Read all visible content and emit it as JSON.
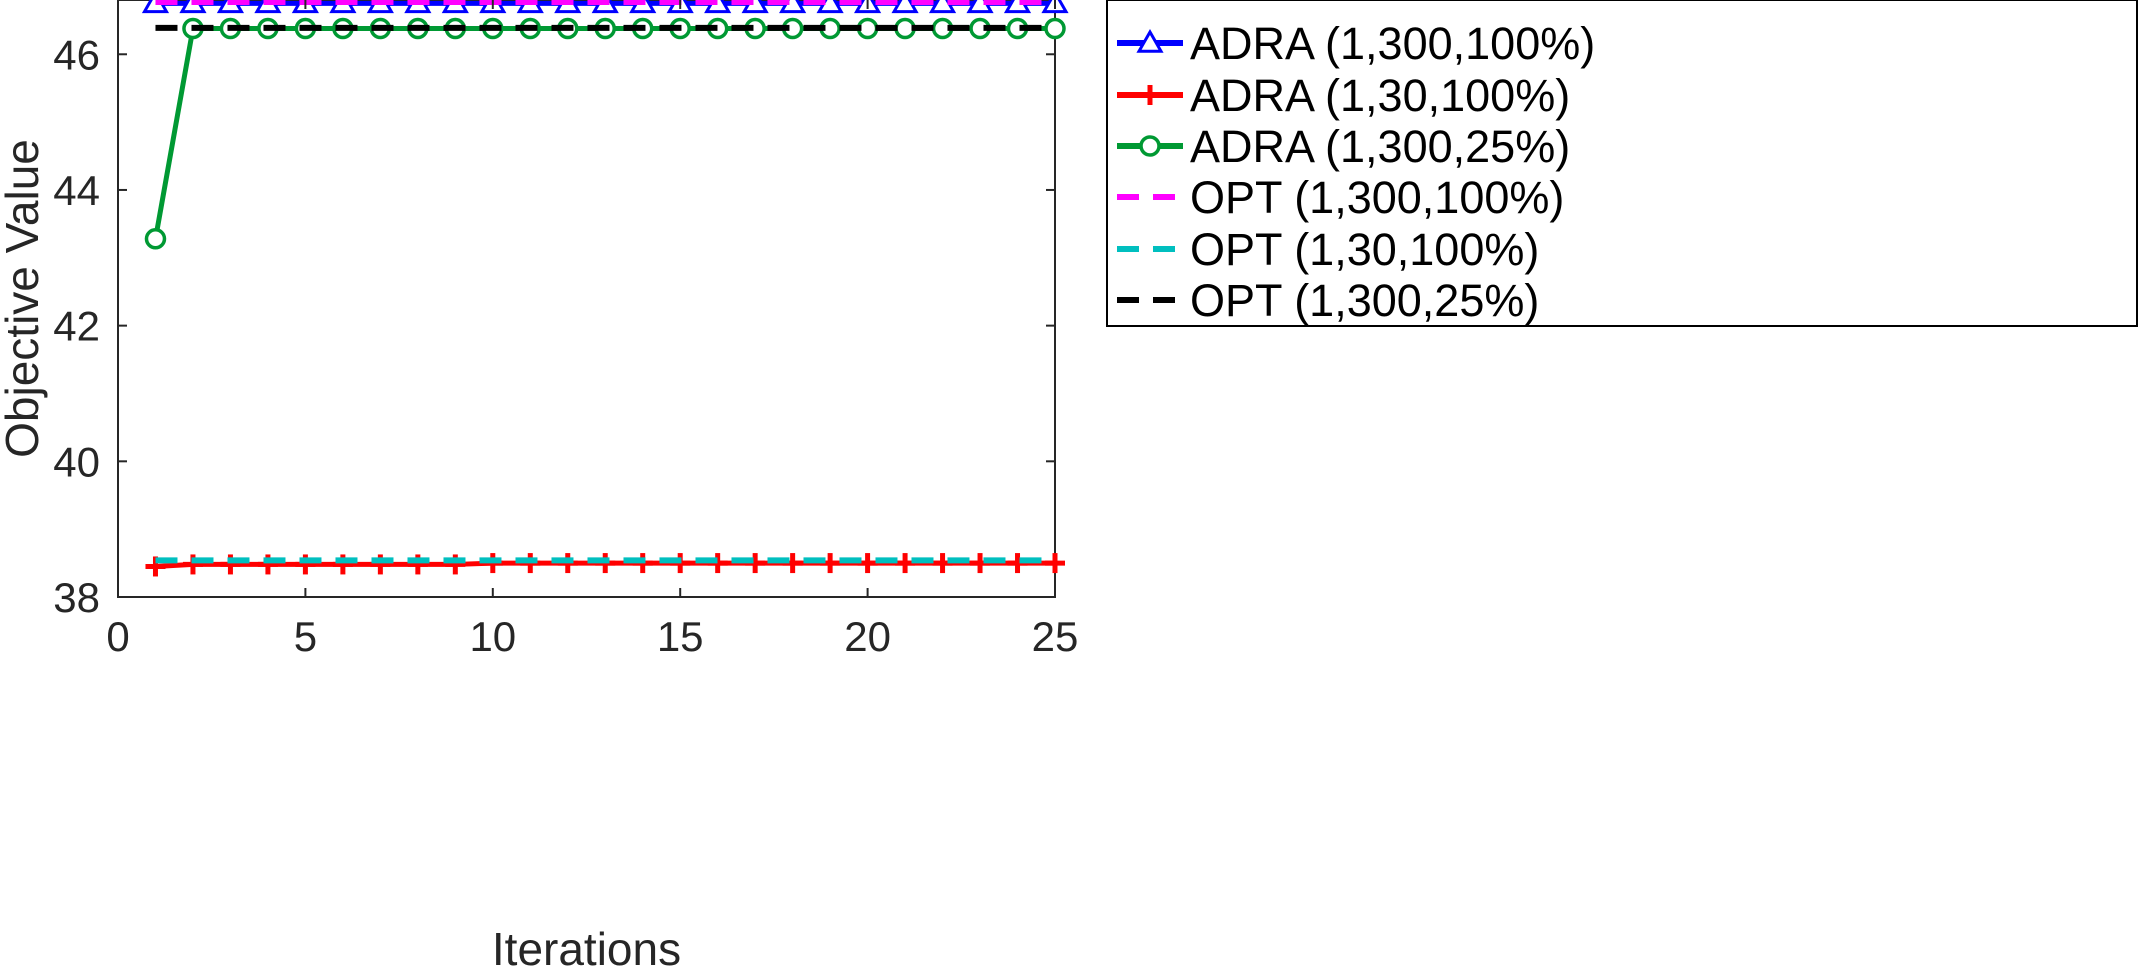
{
  "chart_data": {
    "type": "line",
    "title": "",
    "xlabel": "Iterations",
    "ylabel": "Objective Value",
    "xlim": [
      0,
      25
    ],
    "ylim": [
      38,
      46.8
    ],
    "xticks": [
      0,
      5,
      10,
      15,
      20,
      25
    ],
    "yticks": [
      38,
      40,
      42,
      44,
      46
    ],
    "grid": false,
    "legend_position": "outside-right",
    "series": [
      {
        "name": "ADRA (1,300,100%)",
        "color": "#0000ff",
        "style": "solid",
        "marker": "triangle",
        "x": [
          1,
          2,
          3,
          4,
          5,
          6,
          7,
          8,
          9,
          10,
          11,
          12,
          13,
          14,
          15,
          16,
          17,
          18,
          19,
          20,
          21,
          22,
          23,
          24,
          25
        ],
        "values": [
          46.75,
          46.75,
          46.75,
          46.75,
          46.75,
          46.75,
          46.75,
          46.75,
          46.75,
          46.75,
          46.75,
          46.75,
          46.75,
          46.75,
          46.75,
          46.75,
          46.75,
          46.75,
          46.75,
          46.75,
          46.75,
          46.75,
          46.75,
          46.75,
          46.75
        ]
      },
      {
        "name": "ADRA (1,30,100%)",
        "color": "#ff0000",
        "style": "solid",
        "marker": "plus",
        "x": [
          1,
          2,
          3,
          4,
          5,
          6,
          7,
          8,
          9,
          10,
          11,
          12,
          13,
          14,
          15,
          16,
          17,
          18,
          19,
          20,
          21,
          22,
          23,
          24,
          25
        ],
        "values": [
          38.45,
          38.48,
          38.48,
          38.48,
          38.48,
          38.48,
          38.48,
          38.48,
          38.48,
          38.5,
          38.5,
          38.5,
          38.5,
          38.5,
          38.5,
          38.5,
          38.5,
          38.5,
          38.5,
          38.5,
          38.5,
          38.5,
          38.5,
          38.5,
          38.5
        ]
      },
      {
        "name": "ADRA (1,300,25%)",
        "color": "#009933",
        "style": "solid",
        "marker": "circle",
        "x": [
          1,
          2,
          3,
          4,
          5,
          6,
          7,
          8,
          9,
          10,
          11,
          12,
          13,
          14,
          15,
          16,
          17,
          18,
          19,
          20,
          21,
          22,
          23,
          24,
          25
        ],
        "values": [
          43.28,
          46.38,
          46.38,
          46.38,
          46.38,
          46.38,
          46.38,
          46.38,
          46.38,
          46.38,
          46.38,
          46.38,
          46.38,
          46.38,
          46.38,
          46.38,
          46.38,
          46.38,
          46.38,
          46.38,
          46.38,
          46.38,
          46.38,
          46.38,
          46.38
        ]
      },
      {
        "name": "OPT (1,300,100%)",
        "color": "#ff00ff",
        "style": "dashed",
        "marker": "none",
        "x": [
          1,
          25
        ],
        "values": [
          46.77,
          46.77
        ]
      },
      {
        "name": "OPT (1,30,100%)",
        "color": "#00bfbf",
        "style": "dashed",
        "marker": "none",
        "x": [
          1,
          25
        ],
        "values": [
          38.54,
          38.54
        ]
      },
      {
        "name": "OPT (1,300,25%)",
        "color": "#000000",
        "style": "dashed",
        "marker": "none",
        "x": [
          1,
          25
        ],
        "values": [
          46.39,
          46.39
        ]
      }
    ]
  }
}
